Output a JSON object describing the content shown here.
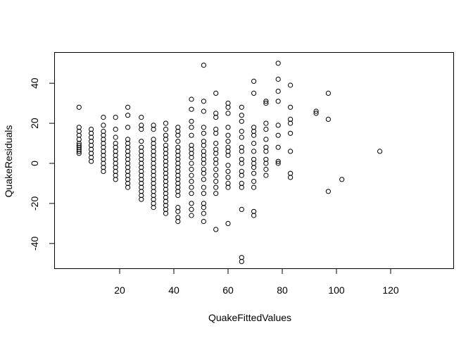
{
  "chart_data": {
    "type": "scatter",
    "title": "",
    "xlabel": "QuakeFittedValues",
    "ylabel": "QuakeResiduals",
    "xlim": [
      0,
      120
    ],
    "ylim": [
      -50,
      50
    ],
    "xticks": [
      20,
      40,
      60,
      80,
      100,
      120
    ],
    "yticks": [
      -40,
      -20,
      0,
      20,
      40
    ],
    "grid": false,
    "legend": "none",
    "marker": "open-circle",
    "point_color": "#000000",
    "series": [
      {
        "points": [
          [
            5,
            28
          ],
          [
            5,
            18
          ],
          [
            5,
            16
          ],
          [
            5,
            14
          ],
          [
            5,
            12
          ],
          [
            5,
            10
          ],
          [
            5,
            9
          ],
          [
            5,
            8
          ],
          [
            5,
            7
          ],
          [
            5,
            6
          ],
          [
            5,
            5
          ],
          [
            9.5,
            17
          ],
          [
            9.5,
            15
          ],
          [
            9.5,
            13
          ],
          [
            9.5,
            11
          ],
          [
            9.5,
            9
          ],
          [
            9.5,
            7
          ],
          [
            9.5,
            5
          ],
          [
            9.5,
            3
          ],
          [
            9.5,
            1
          ],
          [
            14,
            23
          ],
          [
            14,
            19
          ],
          [
            14,
            16
          ],
          [
            14,
            14
          ],
          [
            14,
            12
          ],
          [
            14,
            10
          ],
          [
            14,
            8
          ],
          [
            14,
            6
          ],
          [
            14,
            4
          ],
          [
            14,
            2
          ],
          [
            14,
            0
          ],
          [
            14,
            -2
          ],
          [
            14,
            -4
          ],
          [
            18.5,
            23
          ],
          [
            18.5,
            17
          ],
          [
            18.5,
            13
          ],
          [
            18.5,
            10
          ],
          [
            18.5,
            8
          ],
          [
            18.5,
            6
          ],
          [
            18.5,
            4
          ],
          [
            18.5,
            2
          ],
          [
            18.5,
            0
          ],
          [
            18.5,
            -2
          ],
          [
            18.5,
            -4
          ],
          [
            18.5,
            -6
          ],
          [
            18.5,
            -8
          ],
          [
            23,
            28
          ],
          [
            23,
            24
          ],
          [
            23,
            18
          ],
          [
            23,
            12
          ],
          [
            23,
            10
          ],
          [
            23,
            8
          ],
          [
            23,
            6
          ],
          [
            23,
            4
          ],
          [
            23,
            2
          ],
          [
            23,
            0
          ],
          [
            23,
            -2
          ],
          [
            23,
            -4
          ],
          [
            23,
            -6
          ],
          [
            23,
            -8
          ],
          [
            23,
            -10
          ],
          [
            23,
            -12
          ],
          [
            28,
            23
          ],
          [
            28,
            19
          ],
          [
            28,
            17
          ],
          [
            28,
            11
          ],
          [
            28,
            8
          ],
          [
            28,
            6
          ],
          [
            28,
            4
          ],
          [
            28,
            2
          ],
          [
            28,
            0
          ],
          [
            28,
            -2
          ],
          [
            28,
            -4
          ],
          [
            28,
            -6
          ],
          [
            28,
            -8
          ],
          [
            28,
            -10
          ],
          [
            28,
            -12
          ],
          [
            28,
            -14
          ],
          [
            28,
            -16
          ],
          [
            28,
            -18
          ],
          [
            32.5,
            19
          ],
          [
            32.5,
            17
          ],
          [
            32.5,
            12
          ],
          [
            32.5,
            10
          ],
          [
            32.5,
            8
          ],
          [
            32.5,
            6
          ],
          [
            32.5,
            4
          ],
          [
            32.5,
            2
          ],
          [
            32.5,
            0
          ],
          [
            32.5,
            -2
          ],
          [
            32.5,
            -4
          ],
          [
            32.5,
            -6
          ],
          [
            32.5,
            -8
          ],
          [
            32.5,
            -10
          ],
          [
            32.5,
            -12
          ],
          [
            32.5,
            -14
          ],
          [
            32.5,
            -16
          ],
          [
            32.5,
            -18
          ],
          [
            32.5,
            -20
          ],
          [
            32.5,
            -22
          ],
          [
            37,
            20
          ],
          [
            37,
            17
          ],
          [
            37,
            14
          ],
          [
            37,
            12
          ],
          [
            37,
            9
          ],
          [
            37,
            7
          ],
          [
            37,
            5
          ],
          [
            37,
            3
          ],
          [
            37,
            1
          ],
          [
            37,
            -1
          ],
          [
            37,
            -3
          ],
          [
            37,
            -5
          ],
          [
            37,
            -7
          ],
          [
            37,
            -9
          ],
          [
            37,
            -11
          ],
          [
            37,
            -13
          ],
          [
            37,
            -15
          ],
          [
            37,
            -17
          ],
          [
            37,
            -19
          ],
          [
            37,
            -21
          ],
          [
            37,
            -23
          ],
          [
            37,
            -25
          ],
          [
            41.5,
            18
          ],
          [
            41.5,
            16
          ],
          [
            41.5,
            14
          ],
          [
            41.5,
            11
          ],
          [
            41.5,
            8
          ],
          [
            41.5,
            6
          ],
          [
            41.5,
            4
          ],
          [
            41.5,
            2
          ],
          [
            41.5,
            0
          ],
          [
            41.5,
            -2
          ],
          [
            41.5,
            -4
          ],
          [
            41.5,
            -6
          ],
          [
            41.5,
            -8
          ],
          [
            41.5,
            -10
          ],
          [
            41.5,
            -12
          ],
          [
            41.5,
            -14
          ],
          [
            41.5,
            -16
          ],
          [
            41.5,
            -22
          ],
          [
            41.5,
            -24
          ],
          [
            41.5,
            -27
          ],
          [
            41.5,
            -29
          ],
          [
            46.5,
            32
          ],
          [
            46.5,
            27
          ],
          [
            46.5,
            21
          ],
          [
            46.5,
            18
          ],
          [
            46.5,
            14
          ],
          [
            46.5,
            9
          ],
          [
            46.5,
            7
          ],
          [
            46.5,
            5
          ],
          [
            46.5,
            3
          ],
          [
            46.5,
            0
          ],
          [
            46.5,
            -3
          ],
          [
            46.5,
            -6
          ],
          [
            46.5,
            -9
          ],
          [
            46.5,
            -12
          ],
          [
            46.5,
            -15
          ],
          [
            46.5,
            -20
          ],
          [
            46.5,
            -23
          ],
          [
            46.5,
            -26
          ],
          [
            51,
            49
          ],
          [
            51,
            31
          ],
          [
            51,
            26
          ],
          [
            51,
            18
          ],
          [
            51,
            15
          ],
          [
            51,
            11
          ],
          [
            51,
            9
          ],
          [
            51,
            6
          ],
          [
            51,
            4
          ],
          [
            51,
            2
          ],
          [
            51,
            0
          ],
          [
            51,
            -3
          ],
          [
            51,
            -5
          ],
          [
            51,
            -8
          ],
          [
            51,
            -12
          ],
          [
            51,
            -15
          ],
          [
            51,
            -20
          ],
          [
            51,
            -22
          ],
          [
            51,
            -25
          ],
          [
            51,
            -29
          ],
          [
            55.5,
            35
          ],
          [
            55.5,
            25
          ],
          [
            55.5,
            23
          ],
          [
            55.5,
            17
          ],
          [
            55.5,
            15
          ],
          [
            55.5,
            10
          ],
          [
            55.5,
            7
          ],
          [
            55.5,
            5
          ],
          [
            55.5,
            2
          ],
          [
            55.5,
            0
          ],
          [
            55.5,
            -3
          ],
          [
            55.5,
            -6
          ],
          [
            55.5,
            -9
          ],
          [
            55.5,
            -12
          ],
          [
            55.5,
            -15
          ],
          [
            55.5,
            -33
          ],
          [
            60,
            30
          ],
          [
            60,
            28
          ],
          [
            60,
            25
          ],
          [
            60,
            18
          ],
          [
            60,
            14
          ],
          [
            60,
            11
          ],
          [
            60,
            8
          ],
          [
            60,
            6
          ],
          [
            60,
            4
          ],
          [
            60,
            -1
          ],
          [
            60,
            -4
          ],
          [
            60,
            -7
          ],
          [
            60,
            -10
          ],
          [
            60,
            -12
          ],
          [
            60,
            -30
          ],
          [
            65,
            28
          ],
          [
            65,
            24
          ],
          [
            65,
            21
          ],
          [
            65,
            16
          ],
          [
            65,
            13
          ],
          [
            65,
            8
          ],
          [
            65,
            6
          ],
          [
            65,
            2
          ],
          [
            65,
            0
          ],
          [
            65,
            -4
          ],
          [
            65,
            -6
          ],
          [
            65,
            -10
          ],
          [
            65,
            -12
          ],
          [
            65,
            -23
          ],
          [
            65,
            -47
          ],
          [
            65,
            -49
          ],
          [
            69.5,
            41
          ],
          [
            69.5,
            35
          ],
          [
            69.5,
            18
          ],
          [
            69.5,
            16
          ],
          [
            69.5,
            14
          ],
          [
            69.5,
            10
          ],
          [
            69.5,
            6
          ],
          [
            69.5,
            2
          ],
          [
            69.5,
            0
          ],
          [
            69.5,
            -2
          ],
          [
            69.5,
            -5
          ],
          [
            69.5,
            -9
          ],
          [
            69.5,
            -12
          ],
          [
            69.5,
            -24
          ],
          [
            69.5,
            -26
          ],
          [
            74,
            31
          ],
          [
            74,
            30
          ],
          [
            74,
            20
          ],
          [
            74,
            17
          ],
          [
            74,
            12
          ],
          [
            74,
            8
          ],
          [
            74,
            6
          ],
          [
            74,
            2
          ],
          [
            74,
            0
          ],
          [
            74,
            -3
          ],
          [
            74,
            -6
          ],
          [
            78.5,
            50
          ],
          [
            78.5,
            42
          ],
          [
            78.5,
            36
          ],
          [
            78.5,
            31
          ],
          [
            78.5,
            19
          ],
          [
            78.5,
            14
          ],
          [
            78.5,
            8
          ],
          [
            78.5,
            1
          ],
          [
            78.5,
            0
          ],
          [
            83,
            39
          ],
          [
            83,
            28
          ],
          [
            83,
            22
          ],
          [
            83,
            20
          ],
          [
            83,
            15
          ],
          [
            83,
            6
          ],
          [
            83,
            -5
          ],
          [
            83,
            -7
          ],
          [
            92.5,
            26
          ],
          [
            92.5,
            25
          ],
          [
            97,
            35
          ],
          [
            97,
            22
          ],
          [
            97,
            -14
          ],
          [
            102,
            -8
          ],
          [
            116,
            6
          ]
        ]
      }
    ]
  }
}
